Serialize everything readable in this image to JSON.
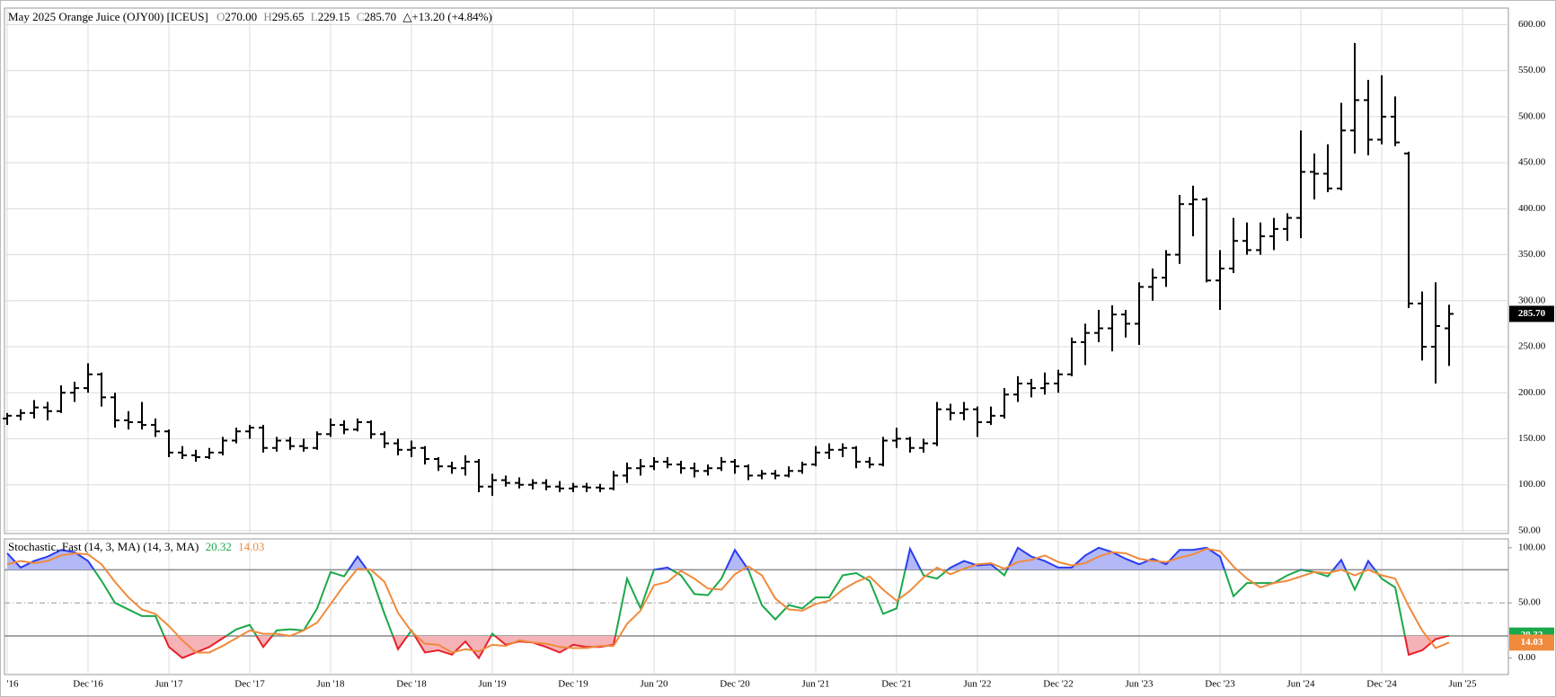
{
  "chart_data": [
    {
      "type": "ohlc",
      "title": "May 2025 Orange Juice (OJY00) [ICEUS]",
      "quote": [
        {
          "key": "O",
          "value": "270.00"
        },
        {
          "key": "H",
          "value": "295.65"
        },
        {
          "key": "L",
          "value": "229.15"
        },
        {
          "key": "C",
          "value": "285.70"
        }
      ],
      "change": "△+13.20 (+4.84%)",
      "last_label": "285.70",
      "color": "#000000",
      "open": [
        172,
        175,
        178,
        184,
        180,
        200,
        205,
        220,
        195,
        170,
        168,
        165,
        158,
        135,
        132,
        130,
        135,
        148,
        158,
        162,
        140,
        148,
        142,
        140,
        155,
        165,
        160,
        168,
        155,
        145,
        138,
        140,
        128,
        120,
        118,
        125,
        98,
        105,
        102,
        100,
        102,
        98,
        96,
        98,
        97,
        96,
        110,
        118,
        120,
        125,
        122,
        118,
        115,
        118,
        125,
        120,
        110,
        112,
        110,
        115,
        122,
        135,
        138,
        140,
        125,
        122,
        148,
        150,
        140,
        145,
        182,
        178,
        182,
        168,
        175,
        198,
        210,
        205,
        210,
        220,
        255,
        265,
        270,
        285,
        275,
        315,
        325,
        350,
        405,
        410,
        322,
        335,
        365,
        355,
        370,
        378,
        390,
        440,
        438,
        422,
        485,
        518,
        475,
        500,
        460,
        297,
        250,
        270,
        null
      ],
      "high": [
        178,
        182,
        192,
        190,
        208,
        212,
        232,
        222,
        200,
        180,
        190,
        172,
        160,
        142,
        138,
        140,
        152,
        162,
        165,
        165,
        152,
        152,
        150,
        158,
        172,
        170,
        172,
        170,
        158,
        150,
        148,
        142,
        130,
        125,
        132,
        128,
        112,
        110,
        108,
        106,
        106,
        104,
        102,
        102,
        101,
        115,
        124,
        128,
        130,
        130,
        126,
        124,
        122,
        130,
        128,
        122,
        116,
        116,
        120,
        125,
        142,
        145,
        145,
        142,
        130,
        152,
        162,
        152,
        150,
        190,
        188,
        190,
        185,
        185,
        205,
        218,
        215,
        222,
        225,
        260,
        275,
        290,
        295,
        290,
        320,
        335,
        355,
        415,
        425,
        412,
        355,
        390,
        385,
        385,
        390,
        395,
        485,
        460,
        470,
        515,
        580,
        540,
        545,
        522,
        462,
        310,
        320,
        295.65,
        null
      ],
      "low": [
        165,
        170,
        172,
        170,
        178,
        190,
        200,
        185,
        162,
        160,
        160,
        152,
        130,
        128,
        125,
        128,
        132,
        145,
        150,
        135,
        136,
        138,
        136,
        138,
        152,
        155,
        158,
        150,
        140,
        132,
        130,
        122,
        115,
        112,
        110,
        92,
        88,
        98,
        96,
        95,
        94,
        92,
        92,
        92,
        92,
        94,
        102,
        110,
        116,
        118,
        112,
        108,
        110,
        115,
        112,
        105,
        106,
        106,
        108,
        112,
        120,
        128,
        130,
        118,
        118,
        120,
        140,
        135,
        135,
        142,
        170,
        170,
        152,
        165,
        172,
        190,
        195,
        198,
        200,
        218,
        230,
        255,
        245,
        260,
        252,
        300,
        315,
        340,
        370,
        320,
        290,
        330,
        350,
        350,
        355,
        365,
        368,
        410,
        418,
        420,
        460,
        458,
        470,
        468,
        292,
        235,
        210,
        229.15,
        null
      ],
      "close": [
        175,
        178,
        184,
        180,
        200,
        205,
        220,
        195,
        170,
        168,
        165,
        158,
        135,
        132,
        130,
        135,
        148,
        158,
        162,
        140,
        148,
        142,
        140,
        155,
        165,
        160,
        168,
        155,
        145,
        138,
        140,
        128,
        120,
        118,
        125,
        98,
        105,
        102,
        100,
        102,
        98,
        96,
        98,
        97,
        96,
        110,
        118,
        120,
        125,
        122,
        118,
        115,
        118,
        125,
        120,
        110,
        112,
        110,
        115,
        122,
        135,
        138,
        140,
        125,
        122,
        148,
        150,
        140,
        145,
        182,
        178,
        182,
        168,
        175,
        198,
        210,
        205,
        210,
        220,
        255,
        265,
        270,
        285,
        275,
        315,
        325,
        350,
        405,
        410,
        322,
        335,
        365,
        355,
        370,
        378,
        390,
        440,
        438,
        422,
        485,
        518,
        475,
        500,
        472,
        297,
        250,
        272.5,
        285.7,
        null
      ],
      "ylim": [
        47,
        618
      ],
      "yticks": [
        {
          "value": 50,
          "label": "50.00"
        },
        {
          "value": 100,
          "label": "100.00"
        },
        {
          "value": 150,
          "label": "150.00"
        },
        {
          "value": 200,
          "label": "200.00"
        },
        {
          "value": 250,
          "label": "250.00"
        },
        {
          "value": 300,
          "label": "300.00"
        },
        {
          "value": 350,
          "label": "350.00"
        },
        {
          "value": 400,
          "label": "400.00"
        },
        {
          "value": 450,
          "label": "450.00"
        },
        {
          "value": 500,
          "label": "500.00"
        },
        {
          "value": 550,
          "label": "550.00"
        },
        {
          "value": 600,
          "label": "600.00"
        }
      ],
      "grid": true
    },
    {
      "type": "line",
      "title": "Stochastic, Fast (14, 3, MA)  (14, 3, MA)",
      "categories": [
        "'16",
        null,
        null,
        null,
        null,
        null,
        "Dec '16",
        null,
        null,
        null,
        null,
        null,
        "Jun '17",
        null,
        null,
        null,
        null,
        null,
        "Dec '17",
        null,
        null,
        null,
        null,
        null,
        "Jun '18",
        null,
        null,
        null,
        null,
        null,
        "Dec '18",
        null,
        null,
        null,
        null,
        null,
        "Jun '19",
        null,
        null,
        null,
        null,
        null,
        "Dec '19",
        null,
        null,
        null,
        null,
        null,
        "Jun '20",
        null,
        null,
        null,
        null,
        null,
        "Dec '20",
        null,
        null,
        null,
        null,
        null,
        "Jun '21",
        null,
        null,
        null,
        null,
        null,
        "Dec '21",
        null,
        null,
        null,
        null,
        null,
        "Jun '22",
        null,
        null,
        null,
        null,
        null,
        "Dec '22",
        null,
        null,
        null,
        null,
        null,
        "Jun '23",
        null,
        null,
        null,
        null,
        null,
        "Dec '23",
        null,
        null,
        null,
        null,
        null,
        "Jun '24",
        null,
        null,
        null,
        null,
        null,
        "Dec '24",
        null,
        null,
        null,
        null,
        null,
        "Jun '25"
      ],
      "series": [
        {
          "color": "#1aa84a",
          "value_label": "20.32",
          "values": [
            95,
            82,
            88,
            92,
            98,
            96,
            88,
            70,
            50,
            44,
            38,
            38,
            10,
            0,
            5,
            10,
            18,
            26,
            30,
            10,
            25,
            26,
            25,
            45,
            78,
            74,
            92,
            75,
            40,
            8,
            25,
            5,
            7,
            3,
            15,
            0,
            22,
            12,
            15,
            14,
            10,
            5,
            12,
            10,
            10,
            12,
            72,
            45,
            80,
            82,
            75,
            58,
            57,
            72,
            98,
            80,
            48,
            35,
            48,
            45,
            55,
            55,
            75,
            77,
            70,
            40,
            45,
            99,
            75,
            72,
            82,
            88,
            84,
            85,
            75,
            100,
            92,
            88,
            82,
            82,
            93,
            100,
            96,
            90,
            85,
            90,
            85,
            98,
            98,
            100,
            92,
            56,
            68,
            68,
            68,
            75,
            80,
            78,
            74,
            89,
            62,
            88,
            72,
            64,
            3,
            7,
            17,
            20.32,
            null
          ]
        },
        {
          "color": "#f08a3c",
          "value_label": "14.03",
          "values": [
            85,
            88,
            86,
            88,
            93,
            95,
            94,
            85,
            69,
            55,
            44,
            40,
            29,
            16,
            5,
            5,
            11,
            18,
            25,
            22,
            22,
            20,
            25,
            32,
            49,
            66,
            81,
            80,
            69,
            41,
            24,
            13,
            12,
            5,
            8,
            6,
            12,
            11,
            16,
            14,
            13,
            10,
            9,
            9,
            11,
            11,
            31,
            43,
            66,
            69,
            79,
            72,
            63,
            62,
            76,
            83,
            75,
            54,
            44,
            43,
            49,
            52,
            62,
            69,
            74,
            62,
            52,
            61,
            73,
            82,
            76,
            81,
            85,
            86,
            81,
            87,
            89,
            93,
            87,
            84,
            86,
            92,
            96,
            95,
            90,
            88,
            87,
            91,
            94,
            99,
            97,
            83,
            72,
            64,
            68,
            70,
            74,
            78,
            77,
            80,
            75,
            80,
            75,
            72,
            47,
            25,
            9,
            14.03,
            null
          ]
        }
      ],
      "levels": [
        20,
        50,
        80
      ],
      "upper_color": "#2a3cf0",
      "upper_fill": "#b3b8f6",
      "lower_color": "#e8202a",
      "lower_fill": "#f5b3b7",
      "ylim": [
        -15,
        108
      ],
      "yticks": [
        {
          "value": 0,
          "label": "0.00"
        },
        {
          "value": 50,
          "label": "50.00"
        },
        {
          "value": 100,
          "label": "100.00"
        }
      ],
      "grid": true
    }
  ]
}
